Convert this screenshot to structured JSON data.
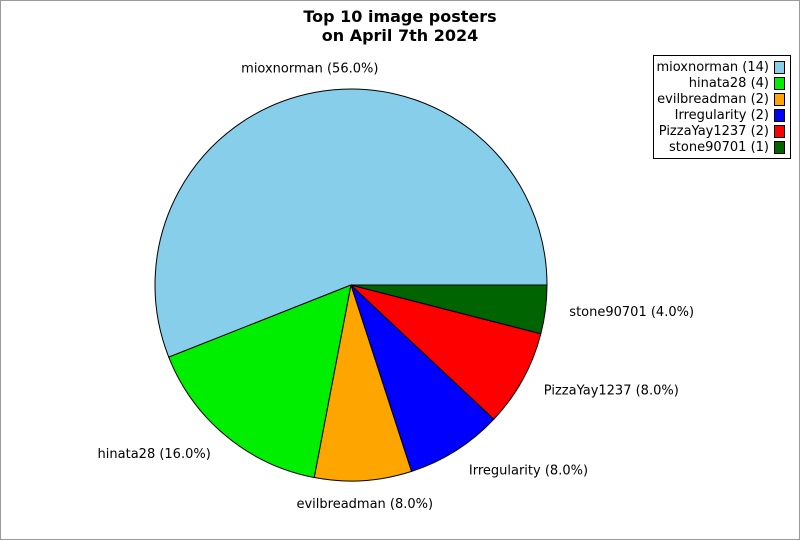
{
  "page": {
    "background": "#ffffff",
    "frame_border_color": "#9a9a9a"
  },
  "title": {
    "line1": "Top 10 image posters",
    "line2": "on April 7th 2024"
  },
  "chart_data": {
    "type": "pie",
    "title": "Top 10 image posters on April 7th 2024",
    "start_angle_deg": 0,
    "direction": "counterclockwise",
    "edge_color": "#000000",
    "legend_position": "upper right",
    "slices": [
      {
        "label": "mioxnorman",
        "count": 14,
        "percent": 56.0,
        "color": "#87CEEB",
        "slice_label": "mioxnorman (56.0%)",
        "legend_label": "mioxnorman (14)"
      },
      {
        "label": "hinata28",
        "count": 4,
        "percent": 16.0,
        "color": "#00EE00",
        "slice_label": "hinata28 (16.0%)",
        "legend_label": "hinata28 (4)"
      },
      {
        "label": "evilbreadman",
        "count": 2,
        "percent": 8.0,
        "color": "#FFA500",
        "slice_label": "evilbreadman (8.0%)",
        "legend_label": "evilbreadman (2)"
      },
      {
        "label": "Irregularity",
        "count": 2,
        "percent": 8.0,
        "color": "#0000FF",
        "slice_label": "Irregularity (8.0%)",
        "legend_label": "Irregularity (2)"
      },
      {
        "label": "PizzaYay1237",
        "count": 2,
        "percent": 8.0,
        "color": "#FF0000",
        "slice_label": "PizzaYay1237 (8.0%)",
        "legend_label": "PizzaYay1237 (2)"
      },
      {
        "label": "stone90701",
        "count": 1,
        "percent": 4.0,
        "color": "#006400",
        "slice_label": "stone90701 (4.0%)",
        "legend_label": "stone90701 (1)"
      }
    ]
  }
}
